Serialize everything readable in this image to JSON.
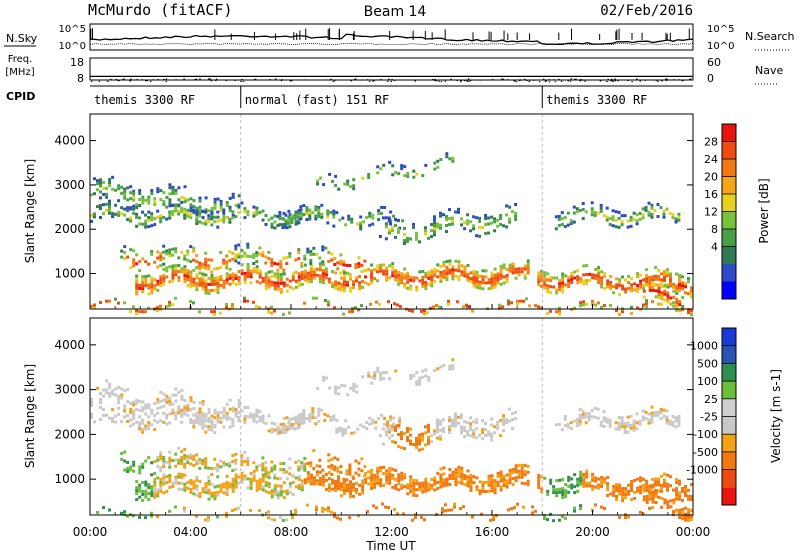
{
  "header": {
    "station": "McMurdo (fitACF)",
    "beam": "Beam 14",
    "date": "02/Feb/2016"
  },
  "left_labels": {
    "nsky": "N.Sky",
    "freq_line1": "Freq.",
    "freq_line2": "[MHz]",
    "cpid": "CPID"
  },
  "right_labels": {
    "nsearch": "N.Search",
    "nave": "Nave"
  },
  "noise_panel": {
    "left_ticks": [
      "10^5",
      "10^0"
    ],
    "right_ticks": [
      "10^5",
      "10^0"
    ]
  },
  "freq_panel": {
    "left_ticks": [
      {
        "label": "18",
        "value": 18
      },
      {
        "label": "8",
        "value": 8
      }
    ],
    "right_ticks": [
      {
        "label": "60",
        "value": 60
      },
      {
        "label": "0",
        "value": 0
      }
    ]
  },
  "cpid_panel": {
    "segments": [
      {
        "label": "themis 3300 RF",
        "start_h": 0,
        "end_h": 6
      },
      {
        "label": "normal (fast) 151 RF",
        "start_h": 6,
        "end_h": 18
      },
      {
        "label": "themis 3300 RF",
        "start_h": 18,
        "end_h": 24
      }
    ]
  },
  "chart_data": [
    {
      "type": "heatmap",
      "name": "power",
      "ylabel": "Slant Range [km]",
      "yticks": [
        1000,
        2000,
        3000,
        4000
      ],
      "ylim": [
        200,
        4600
      ],
      "xlim_hours": [
        0,
        24
      ],
      "colorbar": {
        "label": "Power [dB]",
        "ticks": [
          "28",
          "24",
          "20",
          "16",
          "12",
          "8",
          "4"
        ],
        "colors": [
          "#0000ff",
          "#2c4ac8",
          "#2f7a55",
          "#47a047",
          "#78c13c",
          "#e6d21e",
          "#f5a516",
          "#f17813",
          "#ee4c10",
          "#e8150e"
        ]
      }
    },
    {
      "type": "heatmap",
      "name": "velocity",
      "ylabel": "Slant Range [km]",
      "yticks": [
        1000,
        2000,
        3000,
        4000
      ],
      "ylim": [
        200,
        4600
      ],
      "xlim_hours": [
        0,
        24
      ],
      "xlabel": "Time UT",
      "xticks": [
        "00:00",
        "04:00",
        "08:00",
        "12:00",
        "16:00",
        "20:00",
        "00:00"
      ],
      "colorbar": {
        "label": "Velocity [m s-1]",
        "ticks": [
          "1000",
          "500",
          "100",
          "25",
          "-25",
          "-100",
          "-500",
          "-1000"
        ],
        "colors": [
          "#e8140d",
          "#ef4a10",
          "#f27812",
          "#f4a214",
          "#c9c9c9",
          "#cfcfcf",
          "#6bbd3a",
          "#2f8f4f",
          "#2a52b0",
          "#1a3ad8"
        ]
      }
    }
  ]
}
